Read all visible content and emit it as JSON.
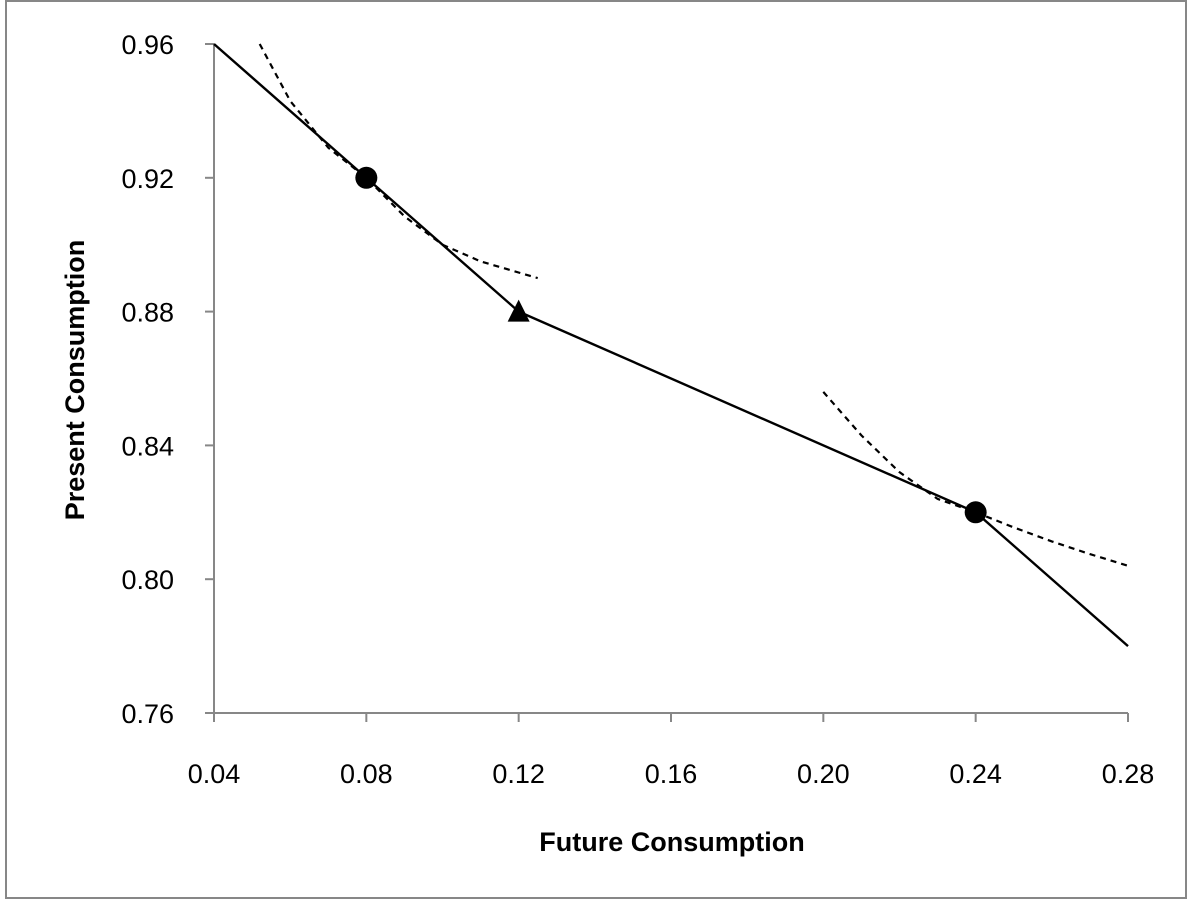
{
  "chart_data": {
    "type": "line",
    "title": "",
    "xlabel": "Future Consumption",
    "ylabel": "Present Consumption",
    "xlim": [
      0.04,
      0.28
    ],
    "ylim": [
      0.76,
      0.96
    ],
    "x_ticks": [
      "0.04",
      "0.08",
      "0.12",
      "0.16",
      "0.20",
      "0.24",
      "0.28"
    ],
    "y_ticks": [
      "0.76",
      "0.80",
      "0.84",
      "0.88",
      "0.92",
      "0.96"
    ],
    "grid": false,
    "legend": "none",
    "series": [
      {
        "style": "solid",
        "x": [
          0.04,
          0.12,
          0.24,
          0.28
        ],
        "y": [
          0.96,
          0.88,
          0.82,
          0.78
        ]
      },
      {
        "style": "dashed",
        "x": [
          0.052,
          0.06,
          0.07,
          0.08,
          0.09,
          0.1,
          0.11,
          0.125
        ],
        "y": [
          0.96,
          0.943,
          0.929,
          0.92,
          0.9085,
          0.9,
          0.895,
          0.89
        ]
      },
      {
        "style": "dashed",
        "x": [
          0.2,
          0.21,
          0.22,
          0.23,
          0.24,
          0.25,
          0.26,
          0.27,
          0.28
        ],
        "y": [
          0.856,
          0.843,
          0.832,
          0.824,
          0.82,
          0.8155,
          0.8113,
          0.8075,
          0.804
        ]
      }
    ],
    "points": [
      {
        "marker": "circle",
        "x": 0.08,
        "y": 0.92
      },
      {
        "marker": "triangle",
        "x": 0.12,
        "y": 0.88
      },
      {
        "marker": "circle",
        "x": 0.24,
        "y": 0.82
      }
    ]
  }
}
